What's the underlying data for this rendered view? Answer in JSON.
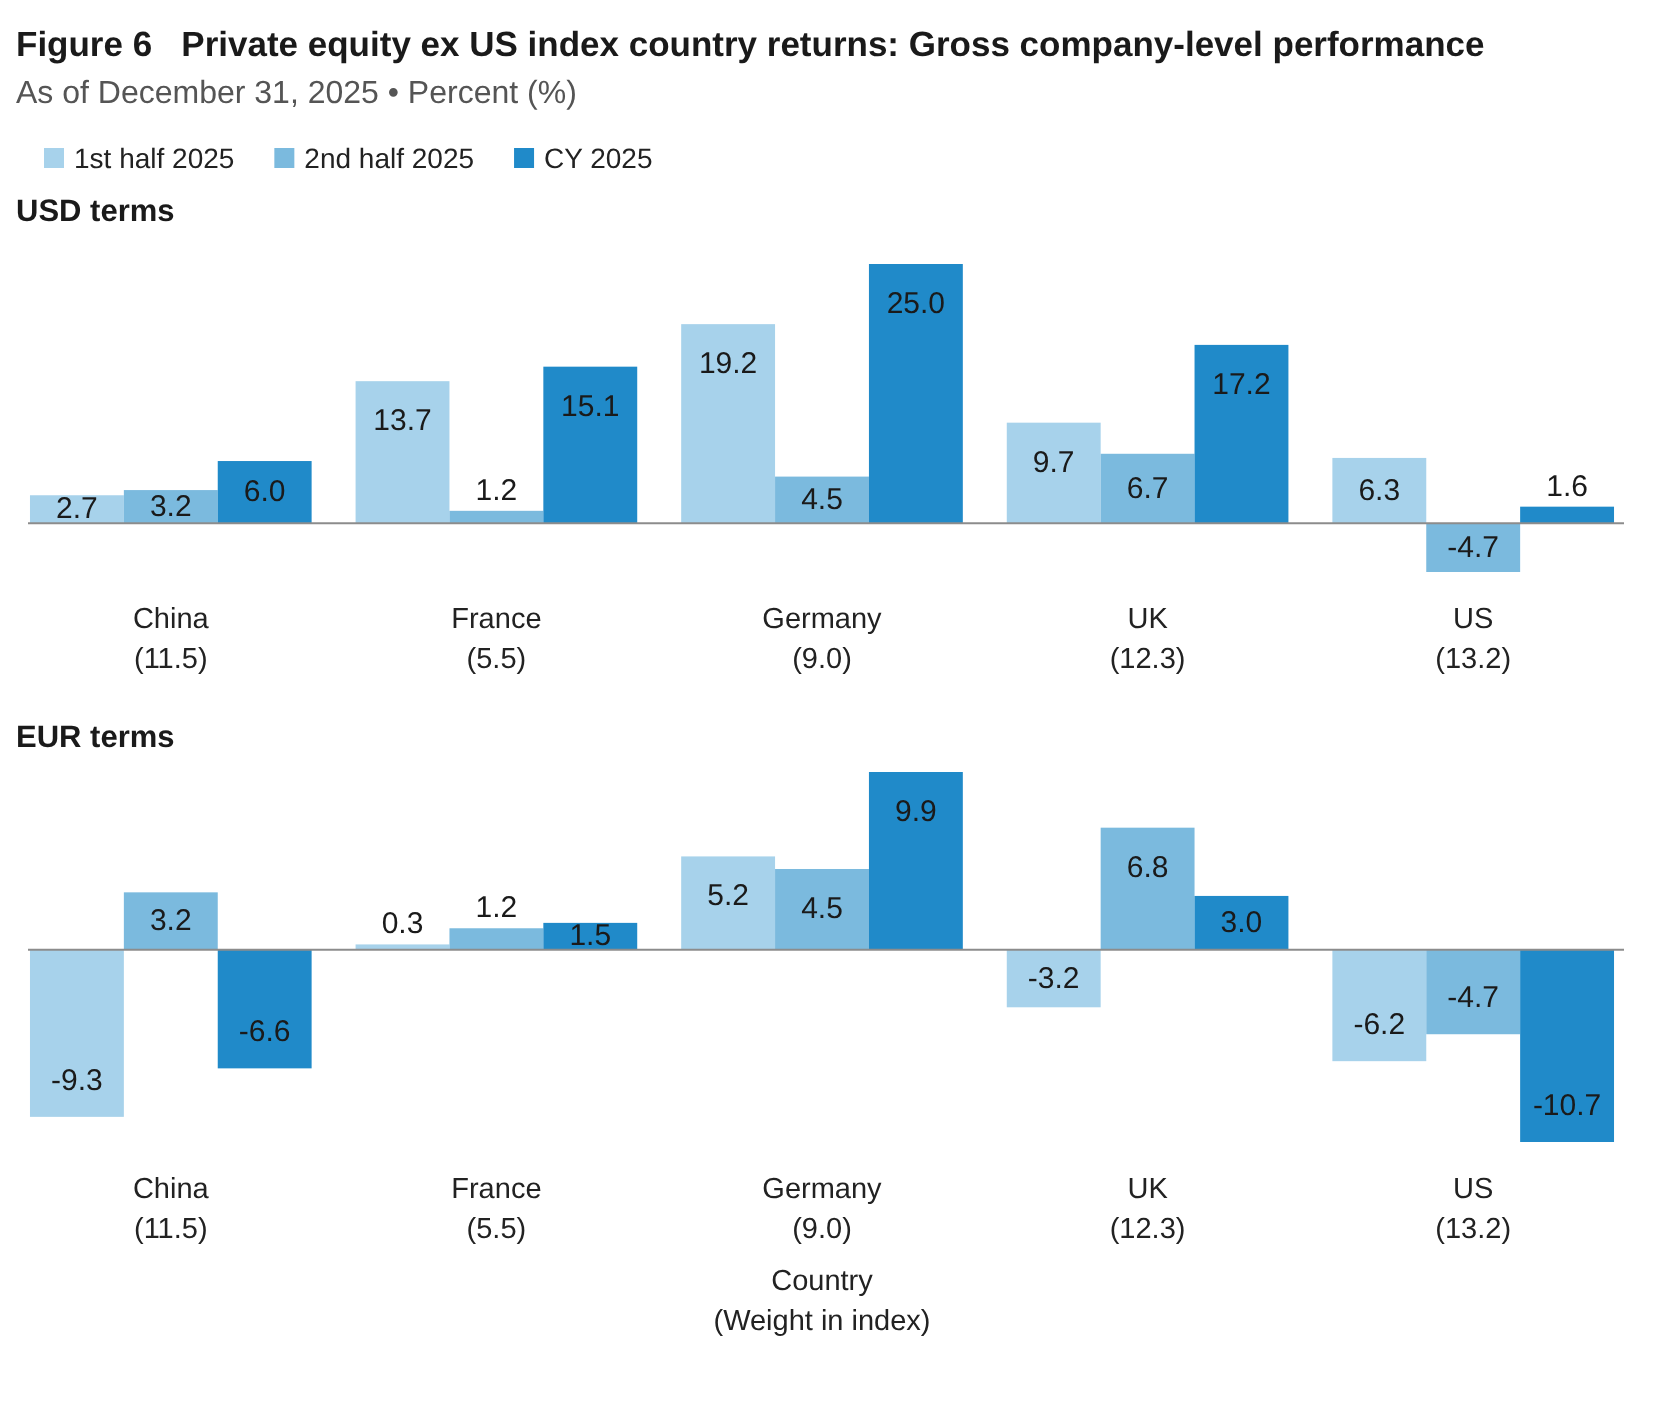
{
  "chart_data": [
    {
      "type": "bar",
      "title": "Figure 6   Private equity ex US index country returns: Gross company-level performance",
      "subtitle": "As of December 31, 2025 • Percent (%)",
      "annotations": [
        "USD terms"
      ],
      "legend": "top left",
      "categories": [
        "China\n(11.5)",
        "France\n(5.5)",
        "Germany\n(9.0)",
        "UK\n(12.3)",
        "US\n(13.2)"
      ],
      "series": [
        {
          "name": "1st half 2025",
          "color": "#a7d2eb",
          "values": [
            2.7,
            13.7,
            19.2,
            9.7,
            6.3
          ],
          "value_labels": [
            "2.7",
            "13.7",
            "19.2",
            "9.7",
            "6.3"
          ]
        },
        {
          "name": "2nd half 2025",
          "color": "#7bbade",
          "values": [
            3.2,
            1.2,
            4.5,
            6.7,
            -4.7
          ],
          "value_labels": [
            "3.2",
            "1.2",
            "4.5",
            "6.7",
            "-4.7"
          ]
        },
        {
          "name": "CY 2025",
          "color": "#208ac9",
          "values": [
            6.0,
            15.1,
            25.0,
            17.2,
            1.6
          ],
          "value_labels": [
            "6.0",
            "15.1",
            "25.0",
            "17.2",
            "1.6"
          ]
        }
      ]
    },
    {
      "type": "bar",
      "title": "EUR terms",
      "xlabel": "Country\n(Weight in index)",
      "categories": [
        "China\n(11.5)",
        "France\n(5.5)",
        "Germany\n(9.0)",
        "UK\n(12.3)",
        "US\n(13.2)"
      ],
      "series": [
        {
          "color": "#a7d2eb",
          "values": [
            -9.3,
            0.3,
            5.2,
            -3.2,
            -6.2
          ],
          "value_labels": [
            "-9.3",
            "0.3",
            "5.2",
            "-3.2",
            "-6.2"
          ]
        },
        {
          "color": "#7bbade",
          "values": [
            3.2,
            1.2,
            4.5,
            6.8,
            -4.7
          ],
          "value_labels": [
            "3.2",
            "1.2",
            "4.5",
            "6.8",
            "-4.7"
          ]
        },
        {
          "color": "#208ac9",
          "values": [
            -6.6,
            1.5,
            9.9,
            3.0,
            -10.7
          ],
          "value_labels": [
            "-6.6",
            "1.5",
            "9.9",
            "3.0",
            "-10.7"
          ]
        }
      ]
    }
  ]
}
